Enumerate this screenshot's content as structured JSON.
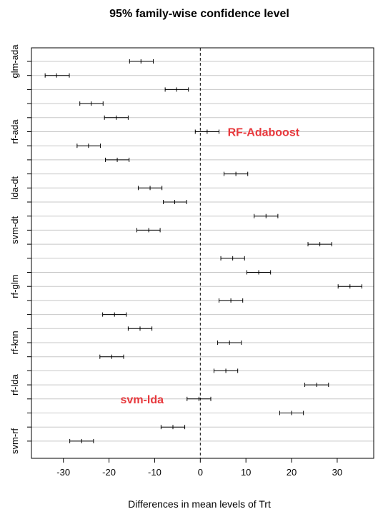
{
  "chart_data": {
    "type": "errorbar",
    "title": "95% family-wise confidence level",
    "xlabel": "Differences in mean levels of Trt",
    "xlim": [
      -37,
      38
    ],
    "xticks": [
      -30,
      -20,
      -10,
      0,
      10,
      20,
      30
    ],
    "reference_line_x": 0,
    "grid": "horizontal",
    "row_count": 28,
    "row_labels": [
      {
        "row": 0,
        "text": "glm-ada"
      },
      {
        "row": 5,
        "text": "rf-ada"
      },
      {
        "row": 9,
        "text": "lda-dt"
      },
      {
        "row": 12,
        "text": "svm-dt"
      },
      {
        "row": 16,
        "text": "rf-glm"
      },
      {
        "row": 20,
        "text": "rf-knn"
      },
      {
        "row": 23,
        "text": "rf-lda"
      },
      {
        "row": 27,
        "text": "svm-rf"
      }
    ],
    "intervals": [
      {
        "row": 0,
        "lwr": -15.5,
        "est": -13.0,
        "upr": -10.3
      },
      {
        "row": 1,
        "lwr": -34.0,
        "est": -31.5,
        "upr": -28.7
      },
      {
        "row": 2,
        "lwr": -7.7,
        "est": -5.2,
        "upr": -2.6
      },
      {
        "row": 3,
        "lwr": -26.4,
        "est": -23.9,
        "upr": -21.3
      },
      {
        "row": 4,
        "lwr": -21.0,
        "est": -18.4,
        "upr": -15.8
      },
      {
        "row": 5,
        "lwr": -1.1,
        "est": 1.5,
        "upr": 4.1
      },
      {
        "row": 6,
        "lwr": -27.0,
        "est": -24.5,
        "upr": -21.9
      },
      {
        "row": 7,
        "lwr": -20.8,
        "est": -18.2,
        "upr": -15.6
      },
      {
        "row": 8,
        "lwr": 5.2,
        "est": 7.8,
        "upr": 10.4
      },
      {
        "row": 9,
        "lwr": -13.6,
        "est": -11.0,
        "upr": -8.4
      },
      {
        "row": 10,
        "lwr": -8.1,
        "est": -5.6,
        "upr": -3.0
      },
      {
        "row": 11,
        "lwr": 11.8,
        "est": 14.4,
        "upr": 17.0
      },
      {
        "row": 12,
        "lwr": -13.9,
        "est": -11.3,
        "upr": -8.8
      },
      {
        "row": 13,
        "lwr": 23.6,
        "est": 26.2,
        "upr": 28.8
      },
      {
        "row": 14,
        "lwr": 4.5,
        "est": 7.1,
        "upr": 9.7
      },
      {
        "row": 15,
        "lwr": 10.2,
        "est": 12.8,
        "upr": 15.4
      },
      {
        "row": 16,
        "lwr": 30.2,
        "est": 32.8,
        "upr": 35.4
      },
      {
        "row": 17,
        "lwr": 4.1,
        "est": 6.7,
        "upr": 9.3
      },
      {
        "row": 18,
        "lwr": -21.4,
        "est": -18.8,
        "upr": -16.2
      },
      {
        "row": 19,
        "lwr": -15.8,
        "est": -13.2,
        "upr": -10.6
      },
      {
        "row": 20,
        "lwr": 3.8,
        "est": 6.4,
        "upr": 9.0
      },
      {
        "row": 21,
        "lwr": -22.0,
        "est": -19.4,
        "upr": -16.8
      },
      {
        "row": 22,
        "lwr": 3.0,
        "est": 5.6,
        "upr": 8.2
      },
      {
        "row": 23,
        "lwr": 22.9,
        "est": 25.5,
        "upr": 28.1
      },
      {
        "row": 24,
        "lwr": -2.9,
        "est": -0.3,
        "upr": 2.3
      },
      {
        "row": 25,
        "lwr": 17.4,
        "est": 20.0,
        "upr": 22.6
      },
      {
        "row": 26,
        "lwr": -8.6,
        "est": -6.0,
        "upr": -3.4
      },
      {
        "row": 27,
        "lwr": -28.6,
        "est": -26.0,
        "upr": -23.4
      }
    ],
    "annotations": [
      {
        "text": "RF-Adaboost",
        "row": 5,
        "x": 6.0,
        "color": "#e8383c"
      },
      {
        "text": "svm-lda",
        "row": 24,
        "x": -17.5,
        "color": "#e8383c"
      }
    ]
  }
}
